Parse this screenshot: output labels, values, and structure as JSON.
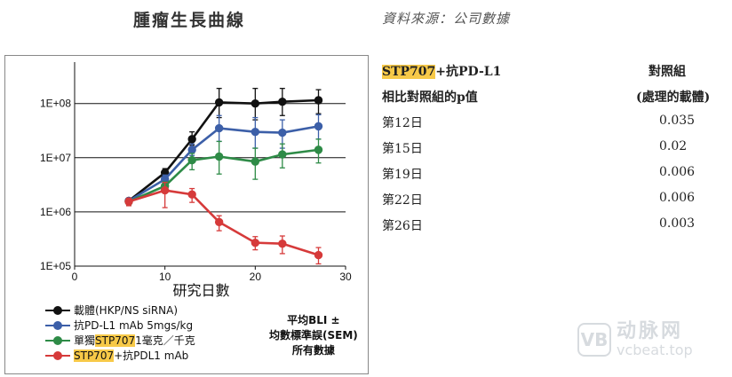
{
  "header": {
    "title": "腫瘤生長曲線",
    "source": "資料來源：公司數據"
  },
  "chart_data": {
    "type": "line",
    "xlabel": "研究日數",
    "ylabel": "",
    "scale_y": "log",
    "xlim": [
      0,
      30
    ],
    "ylim": [
      100000,
      500000000
    ],
    "x_ticks": [
      0,
      10,
      20,
      30
    ],
    "x_tick_labels": [
      "0",
      "10",
      "20",
      "30"
    ],
    "y_ticks": [
      100000,
      1000000,
      10000000,
      100000000
    ],
    "y_tick_labels": [
      "1E+05",
      "1E+06",
      "1E+07",
      "1E+08"
    ],
    "grid": "horizontal",
    "series": [
      {
        "name": "載體(HKP/NS siRNA)",
        "color": "#111111",
        "x": [
          6,
          10,
          13,
          16,
          20,
          23,
          27
        ],
        "y": [
          1600000,
          5300000,
          22000000,
          105000000,
          100000000,
          108000000,
          115000000
        ],
        "err": [
          [
            1400000,
            1800000
          ],
          [
            4500000,
            6300000
          ],
          [
            17000000,
            30000000
          ],
          [
            55000000,
            190000000
          ],
          [
            50000000,
            190000000
          ],
          [
            60000000,
            190000000
          ],
          [
            65000000,
            180000000
          ]
        ]
      },
      {
        "name": "抗PD-L1 mAb 5mgs/kg",
        "color": "#3c5fa8",
        "x": [
          6,
          10,
          13,
          16,
          20,
          23,
          27
        ],
        "y": [
          1600000,
          4000000,
          14000000,
          35000000,
          30000000,
          29000000,
          38000000
        ],
        "err": [
          [
            1400000,
            1800000
          ],
          [
            3400000,
            4800000
          ],
          [
            11000000,
            18000000
          ],
          [
            20000000,
            60000000
          ],
          [
            15000000,
            55000000
          ],
          [
            15000000,
            50000000
          ],
          [
            22000000,
            62000000
          ]
        ]
      },
      {
        "name": "單獨STP707 1毫克／千克",
        "color": "#2e8b47",
        "x": [
          6,
          10,
          13,
          16,
          20,
          23,
          27
        ],
        "y": [
          1550000,
          3000000,
          9000000,
          10500000,
          8500000,
          11500000,
          14000000
        ],
        "err": [
          [
            1350000,
            1750000
          ],
          [
            2500000,
            3600000
          ],
          [
            6000000,
            12000000
          ],
          [
            5000000,
            20000000
          ],
          [
            4000000,
            15000000
          ],
          [
            6500000,
            18000000
          ],
          [
            8000000,
            22000000
          ]
        ]
      },
      {
        "name": "STP707+抗PDL1 mAb",
        "color": "#d63a3a",
        "x": [
          6,
          10,
          13,
          16,
          20,
          23,
          27
        ],
        "y": [
          1550000,
          2500000,
          2100000,
          650000,
          270000,
          260000,
          160000
        ],
        "err": [
          [
            1300000,
            1800000
          ],
          [
            1200000,
            3500000
          ],
          [
            1500000,
            2700000
          ],
          [
            450000,
            850000
          ],
          [
            200000,
            350000
          ],
          [
            170000,
            360000
          ],
          [
            110000,
            220000
          ]
        ]
      }
    ]
  },
  "legend": {
    "items": [
      {
        "pre": "載體(HKP/NS siRNA)",
        "hl": "",
        "post": "",
        "color": "#111111"
      },
      {
        "pre": "抗PD-L1 mAb 5mgs/kg",
        "hl": "",
        "post": "",
        "color": "#3c5fa8"
      },
      {
        "pre": "單獨",
        "hl": "STP707",
        "post": " 1毫克／千克",
        "color": "#2e8b47"
      },
      {
        "pre": "",
        "hl": "STP707",
        "post": "+抗PDL1 mAb",
        "color": "#d63a3a"
      }
    ]
  },
  "stat_note": {
    "line1": "平均BLI ±",
    "line2": "均數標準誤(SEM)",
    "line3": "所有數據"
  },
  "pvalue_table": {
    "head_left_hl": "STP707",
    "head_left_post": "+抗PD-L1",
    "head_left2": "相比對照組的p值",
    "head_right": "對照組",
    "head_right2": "(處理的載體)",
    "rows": [
      {
        "day": "第12日",
        "p": "0.035"
      },
      {
        "day": "第15日",
        "p": "0.02"
      },
      {
        "day": "第19日",
        "p": "0.006"
      },
      {
        "day": "第22日",
        "p": "0.006"
      },
      {
        "day": "第26日",
        "p": "0.003"
      }
    ]
  },
  "watermark": {
    "logo": "VB",
    "cn": "动脉网",
    "en": "vcbeat.top"
  }
}
